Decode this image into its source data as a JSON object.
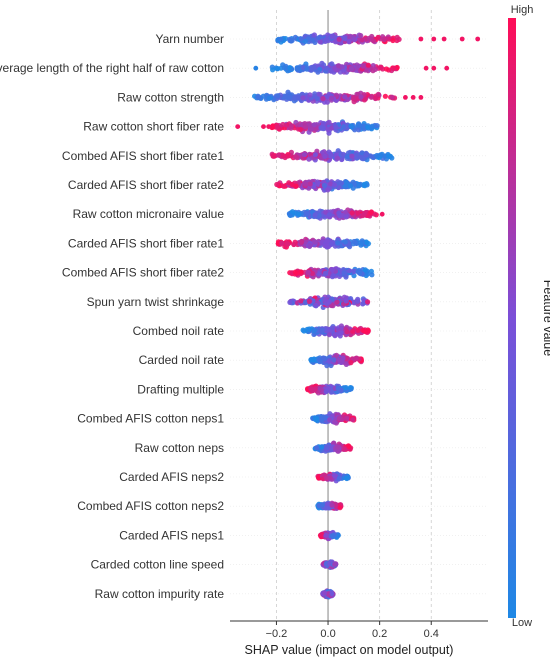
{
  "chart_data": {
    "type": "scatter",
    "subtype": "shap-beeswarm-summary",
    "xlabel": "SHAP value (impact on model output)",
    "xlim": [
      -0.38,
      0.62
    ],
    "x_ticks": [
      -0.2,
      0.0,
      0.2,
      0.4
    ],
    "x_tick_labels": [
      "−0.2",
      "0.0",
      "0.2",
      "0.4"
    ],
    "grid": "vertical dashed at ticks",
    "zero_line": true,
    "colorbar": {
      "title": "Feature value",
      "high_label": "High",
      "low_label": "Low",
      "low_color": "#1e88e5",
      "mid_color": "#7b4fd8",
      "high_color": "#ff0d57",
      "placement": "right"
    },
    "features": [
      {
        "name": "Yarn number",
        "min": -0.21,
        "max": 0.58,
        "core": [
          -0.2,
          0.28
        ],
        "width": 1.0,
        "trend": "high-positive",
        "outliers_high": [
          0.36,
          0.41,
          0.45,
          0.52,
          0.58
        ]
      },
      {
        "name": "Average length of the right half of raw cotton",
        "min": -0.28,
        "max": 0.46,
        "core": [
          -0.22,
          0.3
        ],
        "width": 0.95,
        "trend": "high-positive",
        "outliers_high": [
          0.38,
          0.41,
          0.46
        ],
        "outliers_low": [
          -0.28
        ]
      },
      {
        "name": "Raw cotton strength",
        "min": -0.3,
        "max": 0.36,
        "core": [
          -0.3,
          0.26
        ],
        "width": 0.9,
        "trend": "high-positive",
        "outliers_high": [
          0.3,
          0.33,
          0.36
        ]
      },
      {
        "name": "Raw cotton short fiber rate",
        "min": -0.35,
        "max": 0.19,
        "core": [
          -0.22,
          0.19
        ],
        "width": 0.95,
        "trend": "high-negative",
        "outliers_high": [
          -0.35,
          -0.25,
          -0.23
        ]
      },
      {
        "name": "Combed AFIS short fiber rate1",
        "min": -0.22,
        "max": 0.25,
        "core": [
          -0.22,
          0.25
        ],
        "width": 0.95,
        "trend": "high-negative"
      },
      {
        "name": "Carded AFIS short fiber rate2",
        "min": -0.2,
        "max": 0.16,
        "core": [
          -0.2,
          0.16
        ],
        "width": 0.9,
        "trend": "high-negative"
      },
      {
        "name": "Raw cotton micronaire value",
        "min": -0.15,
        "max": 0.21,
        "core": [
          -0.15,
          0.19
        ],
        "width": 0.9,
        "trend": "high-positive",
        "outliers_high": [
          0.21
        ]
      },
      {
        "name": "Carded AFIS short fiber rate1",
        "min": -0.22,
        "max": 0.16,
        "core": [
          -0.2,
          0.16
        ],
        "width": 0.95,
        "trend": "high-negative"
      },
      {
        "name": "Combed AFIS short fiber rate2",
        "min": -0.15,
        "max": 0.17,
        "core": [
          -0.15,
          0.17
        ],
        "width": 0.9,
        "trend": "high-negative"
      },
      {
        "name": "Spun yarn twist shrinkage",
        "min": -0.15,
        "max": 0.16,
        "core": [
          -0.15,
          0.16
        ],
        "width": 0.95,
        "trend": "mixed"
      },
      {
        "name": "Combed noil rate",
        "min": -0.1,
        "max": 0.16,
        "core": [
          -0.1,
          0.16
        ],
        "width": 0.85,
        "trend": "high-positive"
      },
      {
        "name": "Carded noil rate",
        "min": -0.07,
        "max": 0.13,
        "core": [
          -0.07,
          0.13
        ],
        "width": 0.85,
        "trend": "high-positive"
      },
      {
        "name": "Drafting multiple",
        "min": -0.08,
        "max": 0.09,
        "core": [
          -0.08,
          0.09
        ],
        "width": 0.8,
        "trend": "high-negative"
      },
      {
        "name": "Combed AFIS cotton neps1",
        "min": -0.06,
        "max": 0.1,
        "core": [
          -0.06,
          0.1
        ],
        "width": 0.8,
        "trend": "high-positive"
      },
      {
        "name": "Raw cotton neps",
        "min": -0.05,
        "max": 0.09,
        "core": [
          -0.05,
          0.09
        ],
        "width": 0.75,
        "trend": "high-positive"
      },
      {
        "name": "Carded AFIS neps2",
        "min": -0.04,
        "max": 0.08,
        "core": [
          -0.04,
          0.08
        ],
        "width": 0.6,
        "trend": "high-negative"
      },
      {
        "name": "Combed AFIS cotton neps2",
        "min": -0.04,
        "max": 0.05,
        "core": [
          -0.04,
          0.05
        ],
        "width": 0.6,
        "trend": "high-positive"
      },
      {
        "name": "Carded AFIS neps1",
        "min": -0.03,
        "max": 0.04,
        "core": [
          -0.03,
          0.04
        ],
        "width": 0.55,
        "trend": "high-negative"
      },
      {
        "name": "Carded cotton line speed",
        "min": -0.02,
        "max": 0.03,
        "core": [
          -0.02,
          0.03
        ],
        "width": 0.55,
        "trend": "mixed"
      },
      {
        "name": "Raw cotton impurity rate",
        "min": -0.02,
        "max": 0.02,
        "core": [
          -0.02,
          0.02
        ],
        "width": 0.5,
        "trend": "mixed"
      }
    ]
  }
}
